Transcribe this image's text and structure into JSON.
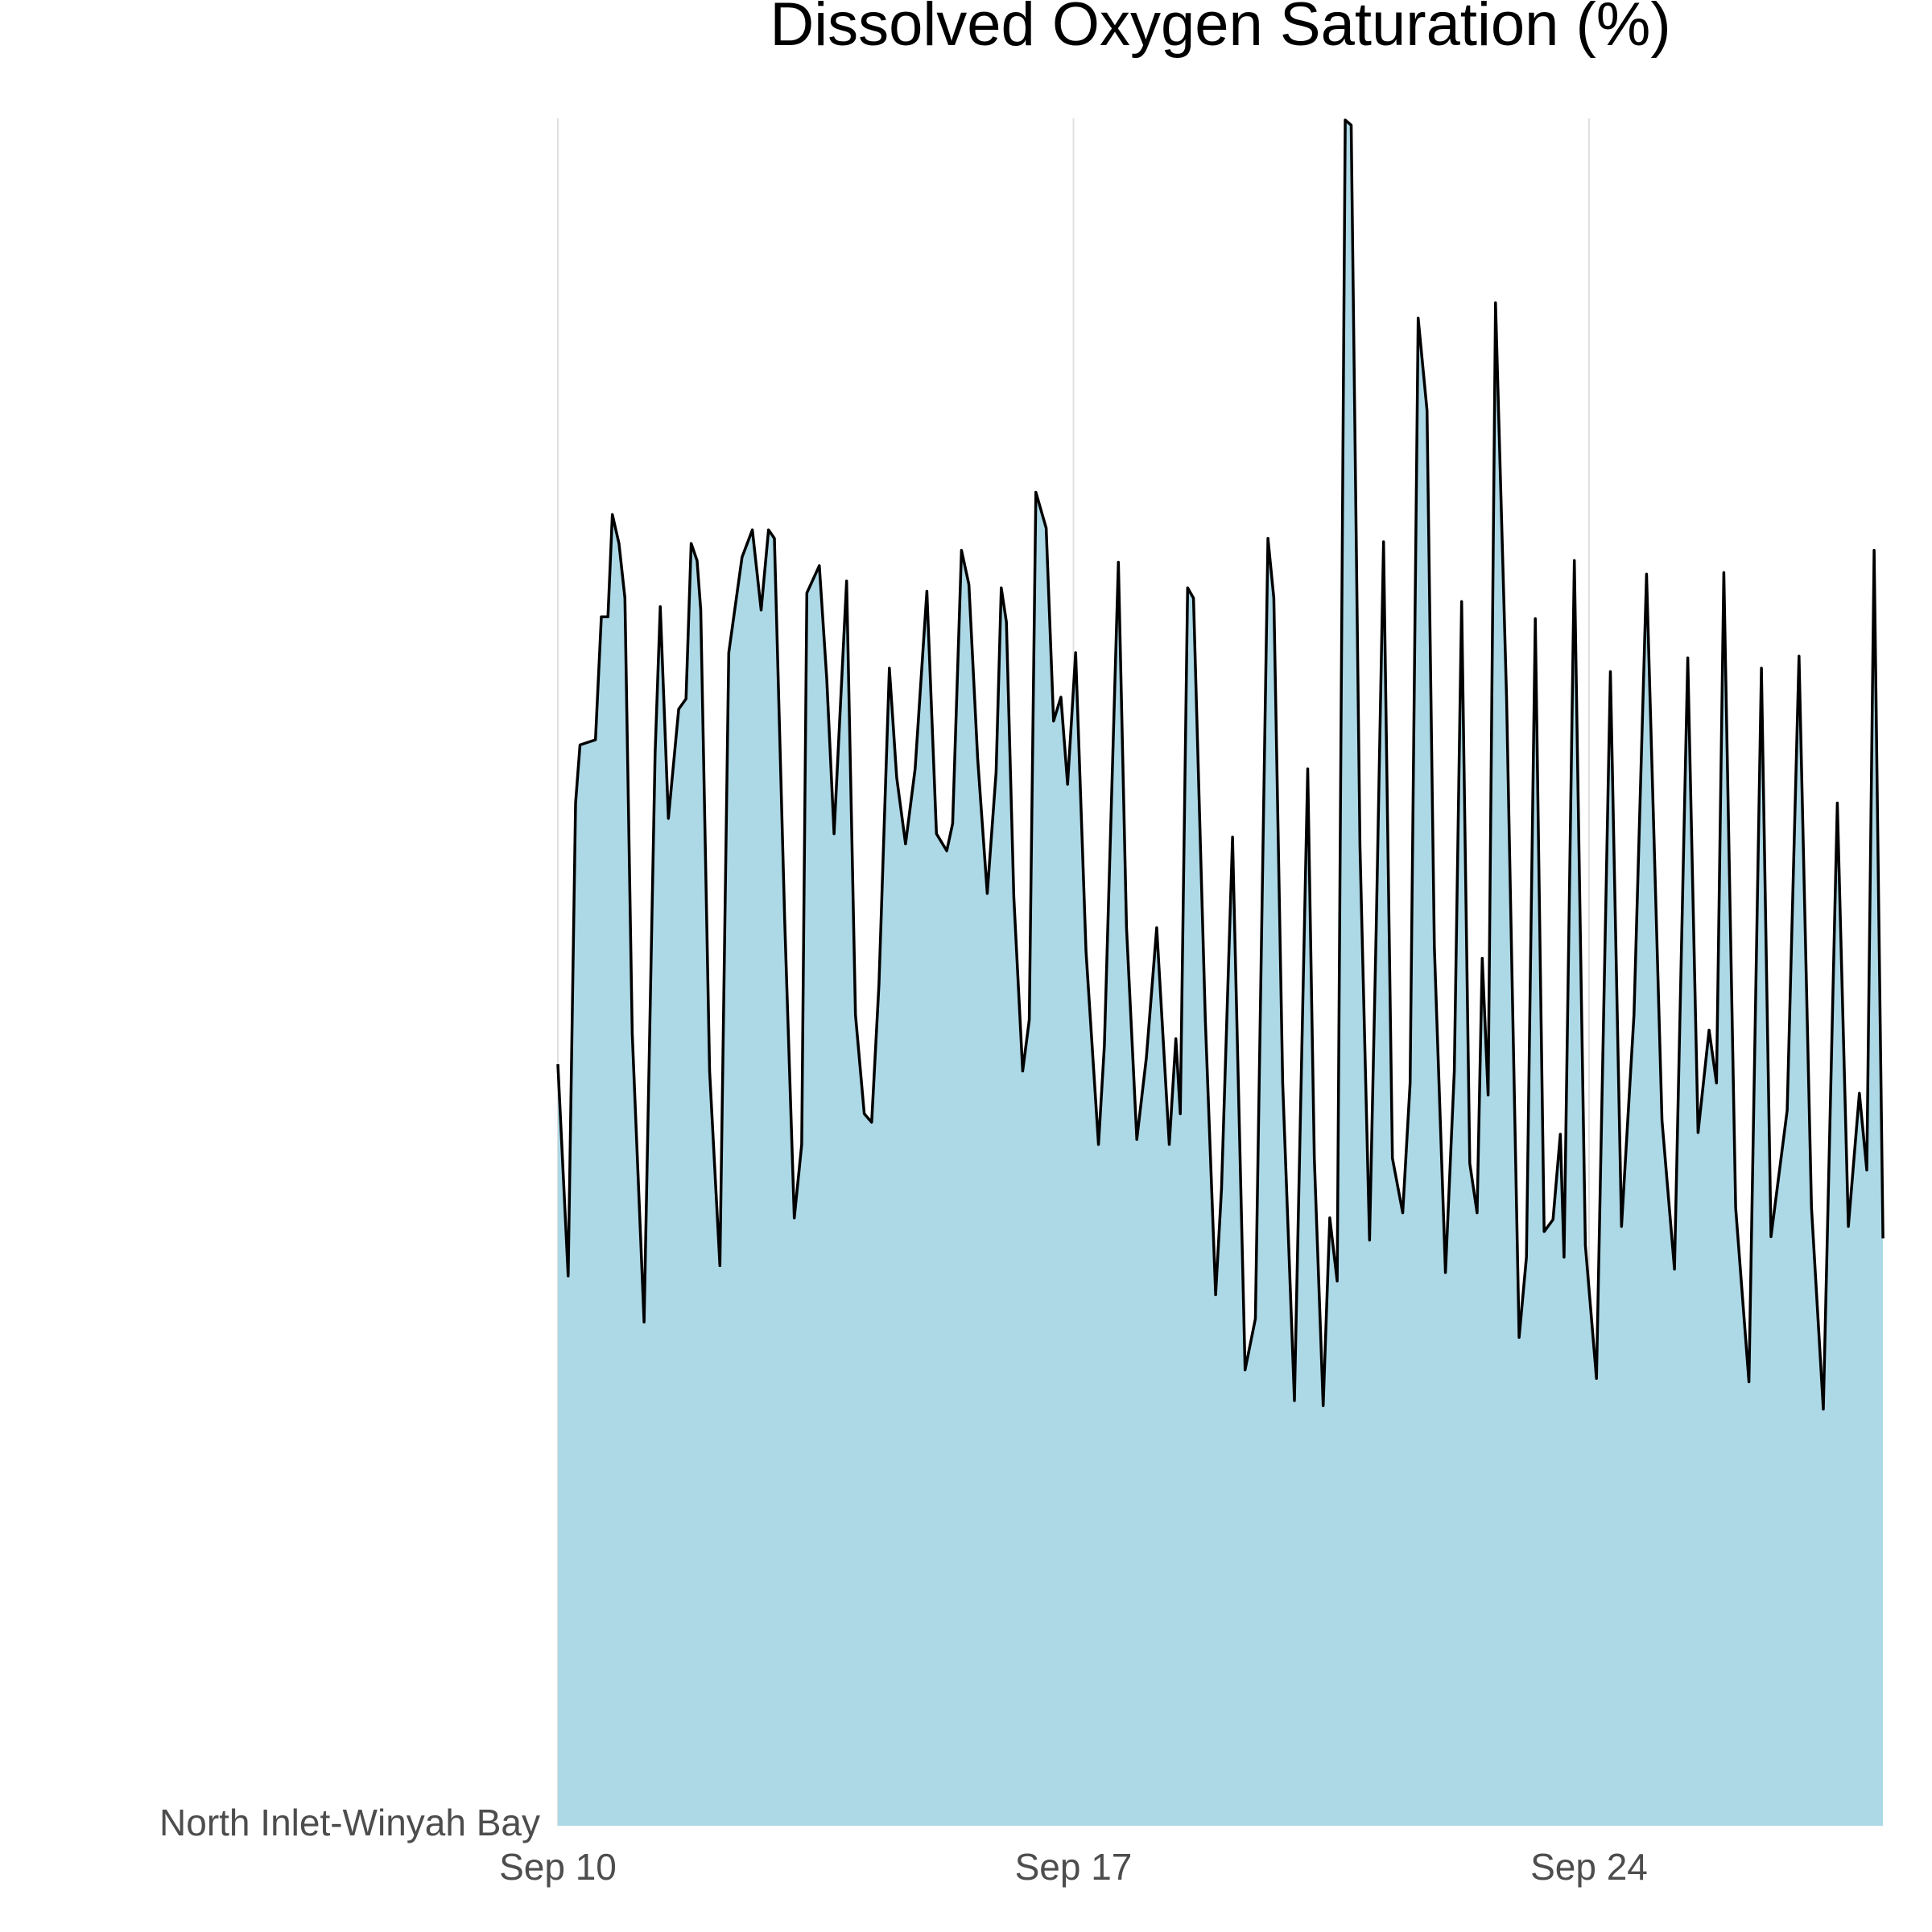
{
  "chart_data": {
    "type": "area",
    "title": "Dissolved Oxygen Saturation (%)",
    "x": [
      0,
      0.14,
      0.24,
      0.3,
      0.51,
      0.59,
      0.68,
      0.74,
      0.83,
      0.91,
      1.01,
      1.17,
      1.32,
      1.39,
      1.5,
      1.64,
      1.74,
      1.81,
      1.89,
      1.94,
      2.06,
      2.2,
      2.32,
      2.5,
      2.64,
      2.76,
      2.86,
      2.94,
      3.08,
      3.21,
      3.31,
      3.38,
      3.55,
      3.65,
      3.75,
      3.92,
      4.04,
      4.16,
      4.26,
      4.36,
      4.5,
      4.6,
      4.72,
      4.85,
      5.01,
      5.14,
      5.28,
      5.36,
      5.48,
      5.58,
      5.7,
      5.83,
      5.95,
      6.02,
      6.09,
      6.19,
      6.31,
      6.4,
      6.49,
      6.63,
      6.73,
      6.83,
      6.92,
      7.03,
      7.17,
      7.34,
      7.42,
      7.61,
      7.72,
      7.86,
      7.99,
      8.13,
      8.3,
      8.39,
      8.45,
      8.55,
      8.63,
      8.79,
      8.93,
      9.01,
      9.16,
      9.33,
      9.47,
      9.64,
      9.72,
      9.84,
      10.0,
      10.18,
      10.27,
      10.39,
      10.48,
      10.58,
      10.69,
      10.77,
      10.89,
      11.02,
      11.11,
      11.21,
      11.33,
      11.47,
      11.57,
      11.68,
      11.8,
      11.9,
      12.05,
      12.17,
      12.27,
      12.38,
      12.48,
      12.55,
      12.63,
      12.73,
      12.88,
      13.05,
      13.15,
      13.27,
      13.39,
      13.51,
      13.61,
      13.66,
      13.8,
      13.95,
      14.1,
      14.29,
      14.44,
      14.61,
      14.78,
      14.99,
      15.16,
      15.34,
      15.48,
      15.63,
      15.73,
      15.83,
      15.99,
      16.17,
      16.34,
      16.47,
      16.69,
      16.85,
      17.02,
      17.18,
      17.37,
      17.52,
      17.67,
      17.77,
      17.87,
      17.99
    ],
    "series": [
      {
        "name": "North Inlet-Winyah Bay",
        "color": "#add8e6",
        "line_color": "#000000",
        "values": [
          44.6,
          32.2,
          59.9,
          63.3,
          63.6,
          70.8,
          70.8,
          76.8,
          75.1,
          71.9,
          46.4,
          29.5,
          62.8,
          71.4,
          59.0,
          65.4,
          66.0,
          75.1,
          74.1,
          71.2,
          44.2,
          32.8,
          68.7,
          74.3,
          75.9,
          71.2,
          75.9,
          75.4,
          53.0,
          35.6,
          39.9,
          72.2,
          73.8,
          67.2,
          58.1,
          72.9,
          47.5,
          41.7,
          41.2,
          49.3,
          67.8,
          61.4,
          57.5,
          61.9,
          72.3,
          58.1,
          57.1,
          58.7,
          74.7,
          72.7,
          62.5,
          54.6,
          61.7,
          72.5,
          70.5,
          54.4,
          44.2,
          47.2,
          78.1,
          76.0,
          64.7,
          66.1,
          61.0,
          68.7,
          51.2,
          39.9,
          45.7,
          74.0,
          52.6,
          40.2,
          45.0,
          52.6,
          39.9,
          46.1,
          41.7,
          72.5,
          71.9,
          47.2,
          31.1,
          37.3,
          57.9,
          26.7,
          29.7,
          75.4,
          71.9,
          43.5,
          24.9,
          61.9,
          39.1,
          24.6,
          35.6,
          31.9,
          99.9,
          99.6,
          57.4,
          34.3,
          52.6,
          75.2,
          39.1,
          35.9,
          43.5,
          88.3,
          82.9,
          51.5,
          32.4,
          44.2,
          71.7,
          38.8,
          35.9,
          50.8,
          42.8,
          89.2,
          66.1,
          28.6,
          33.3,
          70.7,
          34.8,
          35.5,
          40.5,
          33.3,
          74.1,
          34.0,
          26.2,
          67.6,
          35.1,
          47.5,
          73.3,
          41.3,
          32.6,
          68.4,
          40.6,
          46.6,
          43.5,
          73.4,
          36.2,
          26.0,
          67.8,
          34.5,
          41.9,
          68.5,
          36.2,
          24.4,
          59.9,
          35.1,
          42.9,
          38.4,
          74.7,
          34.4
        ]
      }
    ],
    "xlim": [
      0,
      18
    ],
    "ylim": [
      0,
      100
    ],
    "xticks": [
      {
        "value": 0,
        "label": "Sep 10"
      },
      {
        "value": 7,
        "label": "Sep 17"
      },
      {
        "value": 14,
        "label": "Sep 24"
      }
    ],
    "grid": true
  }
}
